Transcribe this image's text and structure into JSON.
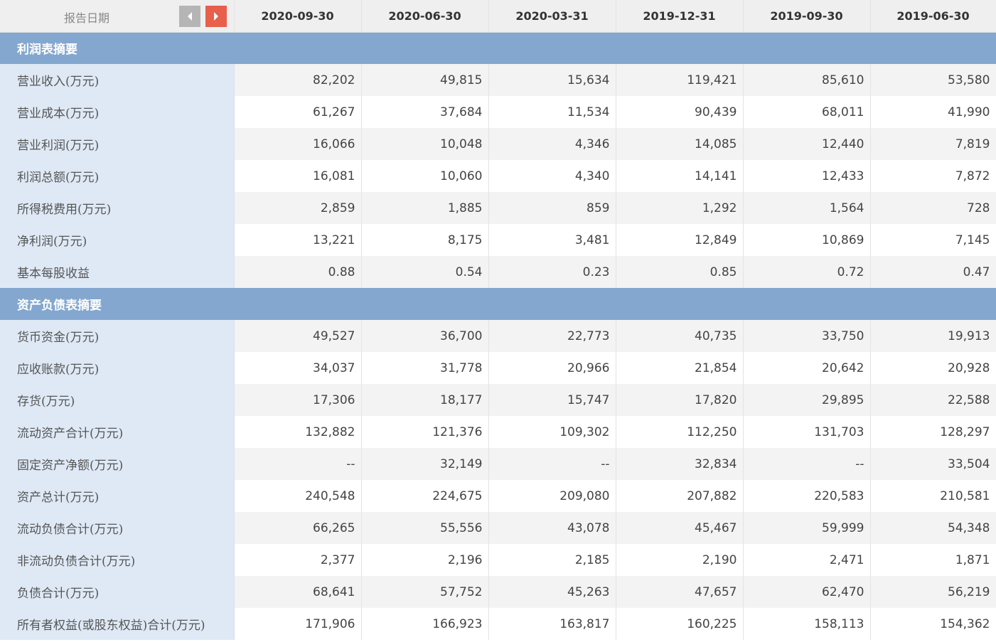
{
  "header": {
    "label": "报告日期",
    "dates": [
      "2020-09-30",
      "2020-06-30",
      "2020-03-31",
      "2019-12-31",
      "2019-09-30",
      "2019-06-30"
    ]
  },
  "sections": [
    {
      "title": "利润表摘要",
      "rows": [
        {
          "label": "营业收入(万元)",
          "values": [
            "82,202",
            "49,815",
            "15,634",
            "119,421",
            "85,610",
            "53,580"
          ]
        },
        {
          "label": "营业成本(万元)",
          "values": [
            "61,267",
            "37,684",
            "11,534",
            "90,439",
            "68,011",
            "41,990"
          ]
        },
        {
          "label": "营业利润(万元)",
          "values": [
            "16,066",
            "10,048",
            "4,346",
            "14,085",
            "12,440",
            "7,819"
          ]
        },
        {
          "label": "利润总额(万元)",
          "values": [
            "16,081",
            "10,060",
            "4,340",
            "14,141",
            "12,433",
            "7,872"
          ]
        },
        {
          "label": "所得税费用(万元)",
          "values": [
            "2,859",
            "1,885",
            "859",
            "1,292",
            "1,564",
            "728"
          ]
        },
        {
          "label": "净利润(万元)",
          "values": [
            "13,221",
            "8,175",
            "3,481",
            "12,849",
            "10,869",
            "7,145"
          ]
        },
        {
          "label": "基本每股收益",
          "values": [
            "0.88",
            "0.54",
            "0.23",
            "0.85",
            "0.72",
            "0.47"
          ]
        }
      ]
    },
    {
      "title": "资产负债表摘要",
      "rows": [
        {
          "label": "货币资金(万元)",
          "values": [
            "49,527",
            "36,700",
            "22,773",
            "40,735",
            "33,750",
            "19,913"
          ]
        },
        {
          "label": "应收账款(万元)",
          "values": [
            "34,037",
            "31,778",
            "20,966",
            "21,854",
            "20,642",
            "20,928"
          ]
        },
        {
          "label": "存货(万元)",
          "values": [
            "17,306",
            "18,177",
            "15,747",
            "17,820",
            "29,895",
            "22,588"
          ]
        },
        {
          "label": "流动资产合计(万元)",
          "values": [
            "132,882",
            "121,376",
            "109,302",
            "112,250",
            "131,703",
            "128,297"
          ]
        },
        {
          "label": "固定资产净额(万元)",
          "values": [
            "--",
            "32,149",
            "--",
            "32,834",
            "--",
            "33,504"
          ]
        },
        {
          "label": "资产总计(万元)",
          "values": [
            "240,548",
            "224,675",
            "209,080",
            "207,882",
            "220,583",
            "210,581"
          ]
        },
        {
          "label": "流动负债合计(万元)",
          "values": [
            "66,265",
            "55,556",
            "43,078",
            "45,467",
            "59,999",
            "54,348"
          ]
        },
        {
          "label": "非流动负债合计(万元)",
          "values": [
            "2,377",
            "2,196",
            "2,185",
            "2,190",
            "2,471",
            "1,871"
          ]
        },
        {
          "label": "负债合计(万元)",
          "values": [
            "68,641",
            "57,752",
            "45,263",
            "47,657",
            "62,470",
            "56,219"
          ]
        },
        {
          "label": "所有者权益(或股东权益)合计(万元)",
          "values": [
            "171,906",
            "166,923",
            "163,817",
            "160,225",
            "158,113",
            "154,362"
          ]
        }
      ]
    }
  ],
  "icons": {
    "prev": "arrow-left-icon",
    "next": "arrow-right-icon"
  },
  "colors": {
    "section_band": "#83a7cf",
    "label_cell": "#dfe9f6",
    "next_button": "#e8604c",
    "prev_button": "#b5b5b5"
  }
}
